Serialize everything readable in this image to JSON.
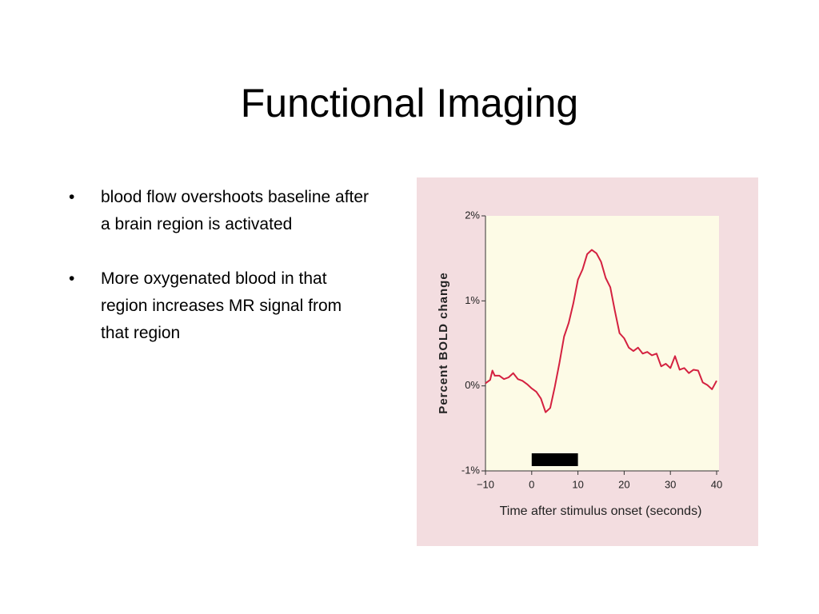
{
  "title": "Functional Imaging",
  "bullets": [
    "blood flow overshoots baseline after a brain region is activated",
    "More oxygenated blood in that region increases MR signal from that region"
  ],
  "chart_data": {
    "type": "line",
    "xlabel": "Time after stimulus onset (seconds)",
    "ylabel": "Percent BOLD change",
    "x": [
      -10,
      -9,
      -8.5,
      -8,
      -7,
      -6,
      -5,
      -4,
      -3,
      -2,
      -1,
      0,
      1,
      2,
      3,
      4,
      5,
      6,
      7,
      8,
      9,
      10,
      11,
      12,
      13,
      14,
      15,
      16,
      17,
      18,
      19,
      20,
      21,
      22,
      23,
      24,
      25,
      26,
      27,
      28,
      29,
      30,
      31,
      32,
      33,
      34,
      35,
      36,
      37,
      38,
      39,
      40
    ],
    "series": [
      {
        "color": "#d42140",
        "values": [
          0.03,
          0.07,
          0.18,
          0.12,
          0.12,
          0.08,
          0.1,
          0.15,
          0.08,
          0.06,
          0.02,
          -0.03,
          -0.07,
          -0.15,
          -0.31,
          -0.26,
          -0.01,
          0.27,
          0.58,
          0.74,
          0.97,
          1.25,
          1.37,
          1.55,
          1.6,
          1.56,
          1.46,
          1.27,
          1.16,
          0.88,
          0.62,
          0.56,
          0.45,
          0.41,
          0.45,
          0.38,
          0.4,
          0.36,
          0.38,
          0.23,
          0.26,
          0.21,
          0.35,
          0.19,
          0.21,
          0.15,
          0.19,
          0.18,
          0.04,
          0.01,
          -0.04,
          0.06
        ]
      }
    ],
    "stimulus": [
      0,
      10
    ],
    "xlim": [
      -10,
      40
    ],
    "ylim": [
      -1,
      2
    ],
    "xticks": [
      {
        "value": -10,
        "label": "−10"
      },
      0,
      10,
      20,
      30,
      40
    ],
    "yticks": [
      {
        "value": -1,
        "label": "-1%"
      },
      {
        "value": 0,
        "label": "0%"
      },
      {
        "value": 1,
        "label": "1%"
      },
      {
        "value": 2,
        "label": "2%"
      }
    ]
  }
}
